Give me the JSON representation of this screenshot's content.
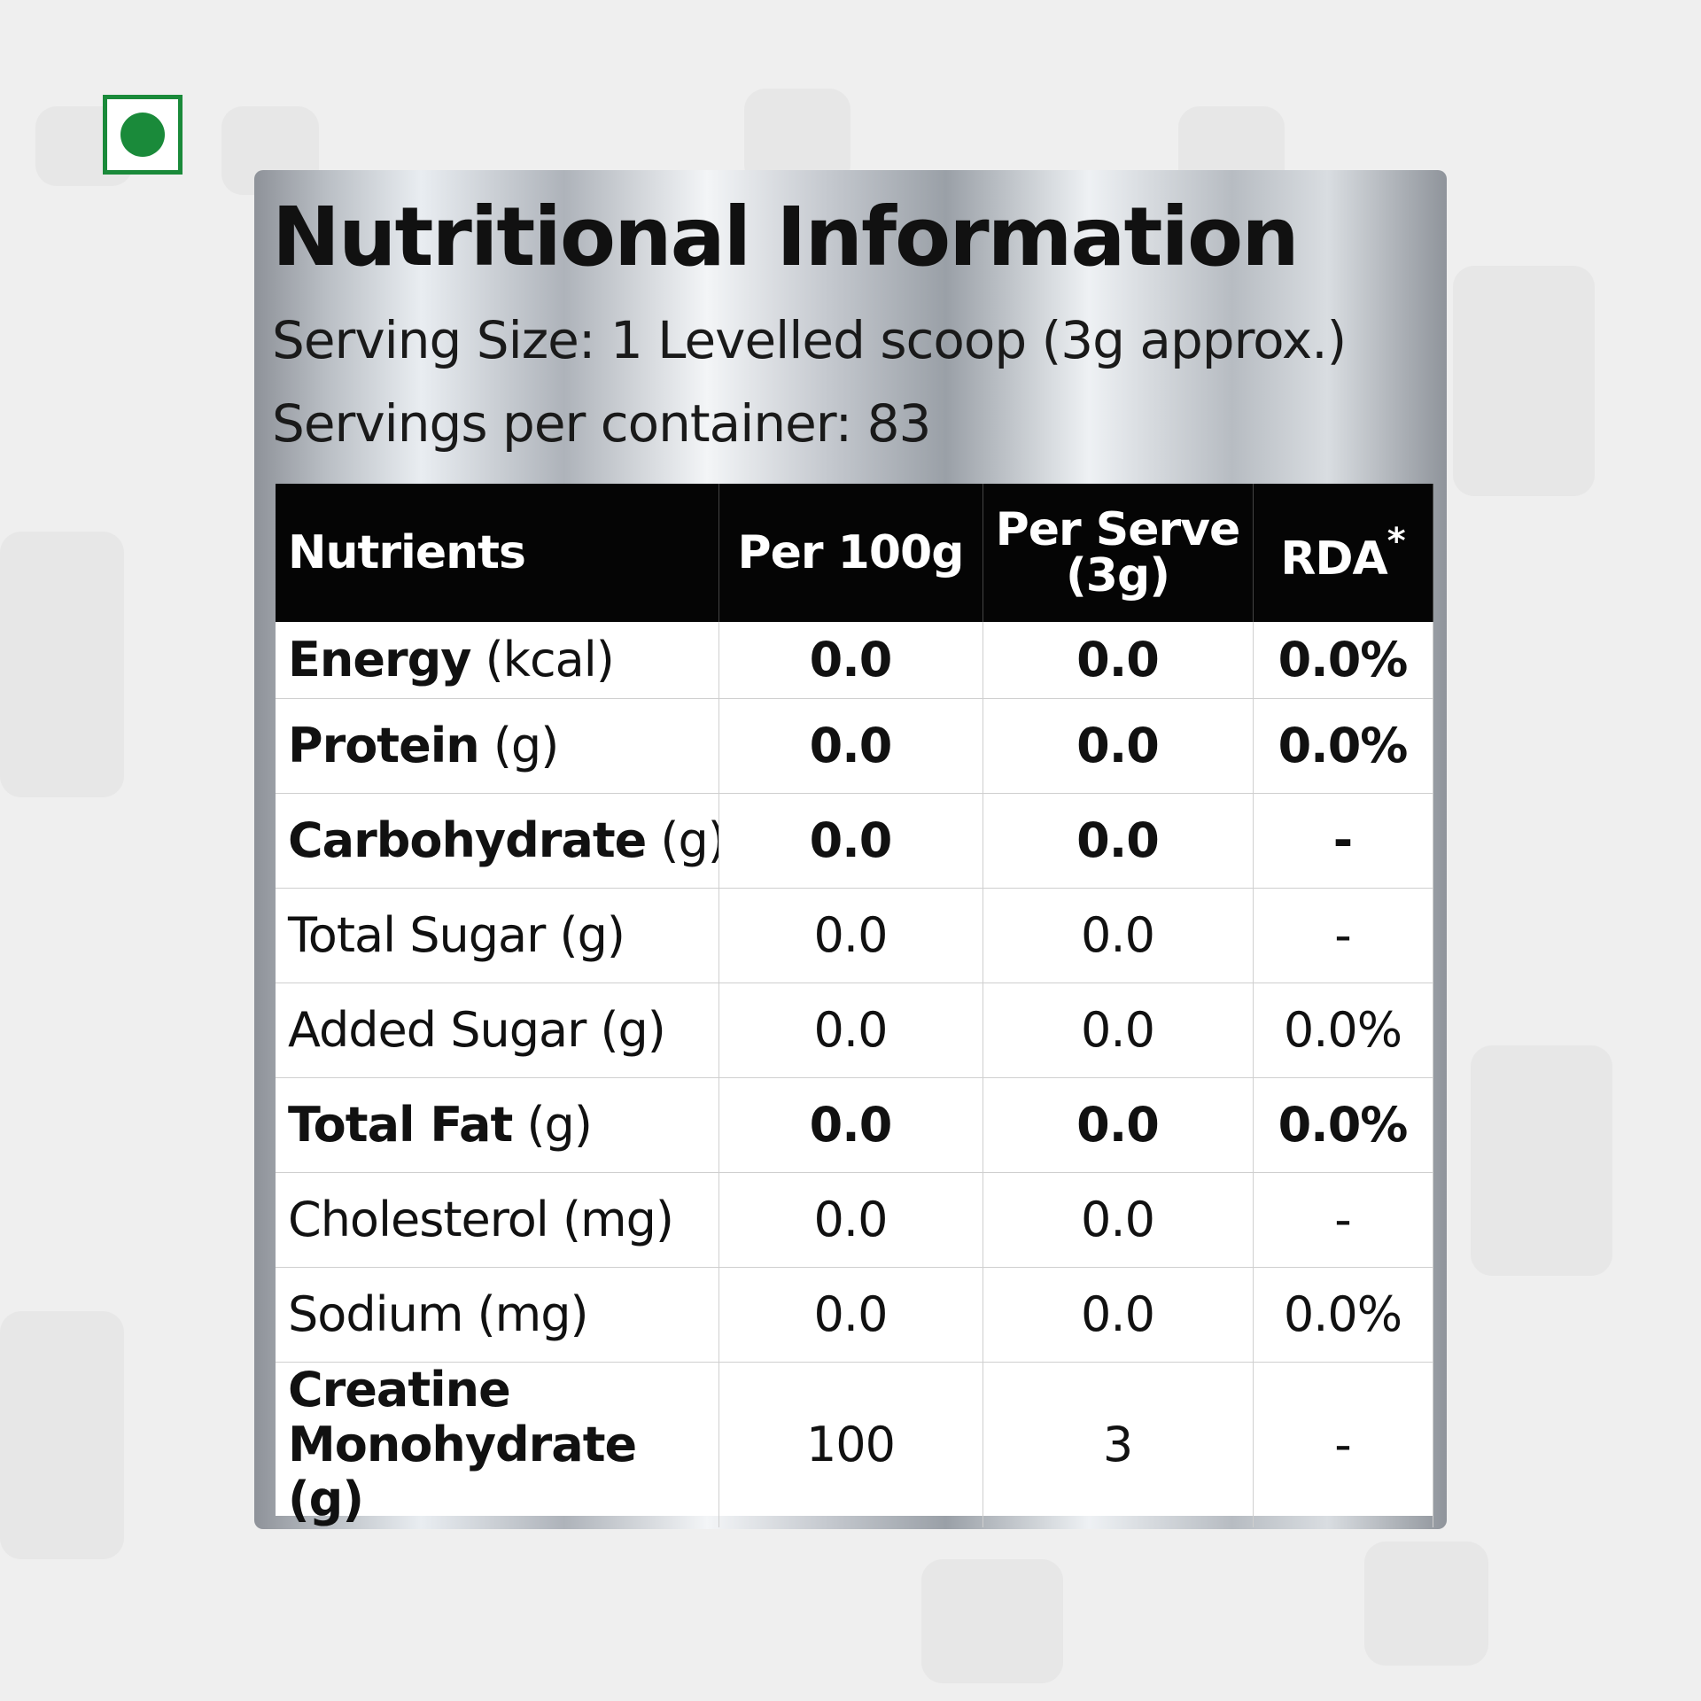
{
  "title": "Nutritional Information",
  "serving_size": "Serving Size: 1 Levelled scoop (3g approx.)",
  "servings_per_container": "Servings per container: 83",
  "colors": {
    "veg_green": "#1a8a3a",
    "header_black": "#050505"
  },
  "header": {
    "nutrients": "Nutrients",
    "per_100g": "Per 100g",
    "per_serve_line1": "Per Serve",
    "per_serve_line2": "(3g)",
    "rda": "RDA",
    "rda_mark": "*"
  },
  "rows": [
    {
      "name": "Energy",
      "unit": " (kcal)",
      "per_100g": "0.0",
      "per_serve": "0.0",
      "rda": "0.0%"
    },
    {
      "name": "Protein",
      "unit": " (g)",
      "per_100g": "0.0",
      "per_serve": "0.0",
      "rda": "0.0%"
    },
    {
      "name": "Carbohydrate",
      "unit": " (g)",
      "per_100g": "0.0",
      "per_serve": "0.0",
      "rda": "-"
    },
    {
      "name": "Total Sugar",
      "unit": " (g)",
      "per_100g": "0.0",
      "per_serve": "0.0",
      "rda": "-"
    },
    {
      "name": "Added Sugar",
      "unit": " (g)",
      "per_100g": "0.0",
      "per_serve": "0.0",
      "rda": "0.0%"
    },
    {
      "name": "Total Fat",
      "unit": " (g)",
      "per_100g": "0.0",
      "per_serve": "0.0",
      "rda": "0.0%"
    },
    {
      "name": "Cholesterol",
      "unit": " (mg)",
      "per_100g": "0.0",
      "per_serve": "0.0",
      "rda": "-"
    },
    {
      "name": "Sodium",
      "unit": " (mg)",
      "per_100g": "0.0",
      "per_serve": "0.0",
      "rda": "0.0%"
    },
    {
      "name": "Creatine Monohydrate",
      "unit": " (g)",
      "per_100g": "100",
      "per_serve": "3",
      "rda": "-"
    }
  ]
}
